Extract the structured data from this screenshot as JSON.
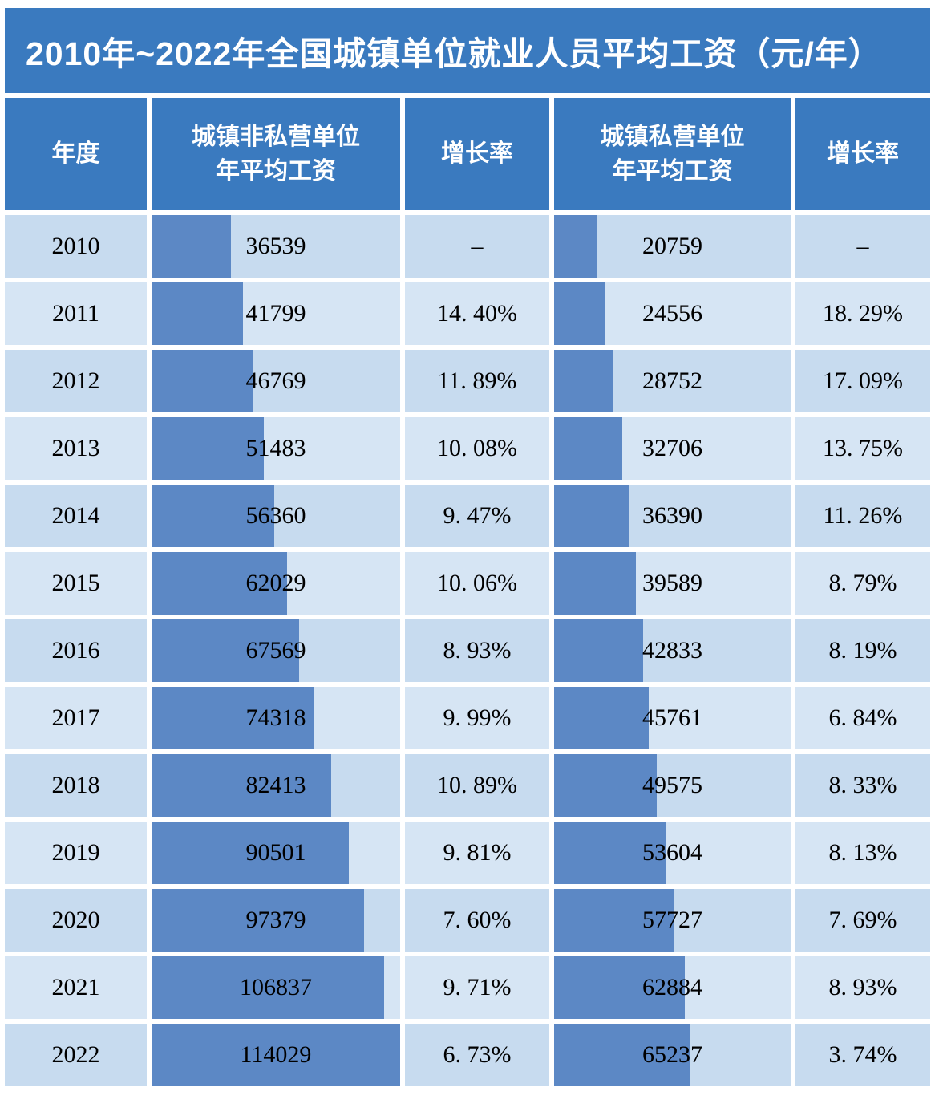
{
  "title": "2010年~2022年全国城镇单位就业人员平均工资（元/年）",
  "colors": {
    "header_bg": "#3a7abf",
    "row_odd_bg": "#c7dbef",
    "row_even_bg": "#d6e5f4",
    "bar": "#5c88c5",
    "header_text": "#ffffff",
    "cell_text": "#000000",
    "page_bg": "#ffffff"
  },
  "header": {
    "col_year": "年度",
    "col_nonprivate": "城镇非私营单位\n年平均工资",
    "col_growth1": "增长率",
    "col_private": "城镇私营单位\n年平均工资",
    "col_growth2": "增长率"
  },
  "chart_data": {
    "type": "table",
    "title": "2010年~2022年全国城镇单位就业人员平均工资（元/年）",
    "columns": [
      "年度",
      "城镇非私营单位年平均工资",
      "增长率",
      "城镇私营单位年平均工资",
      "增长率"
    ],
    "bar_scale_max": 114029,
    "bar_style": "horizontal bars behind wage values, scaled to shared max",
    "rows": [
      {
        "year": "2010",
        "nonprivate_wage": 36539,
        "nonprivate_growth": "–",
        "private_wage": 20759,
        "private_growth": "–"
      },
      {
        "year": "2011",
        "nonprivate_wage": 41799,
        "nonprivate_growth": "14. 40%",
        "private_wage": 24556,
        "private_growth": "18. 29%"
      },
      {
        "year": "2012",
        "nonprivate_wage": 46769,
        "nonprivate_growth": "11. 89%",
        "private_wage": 28752,
        "private_growth": "17. 09%"
      },
      {
        "year": "2013",
        "nonprivate_wage": 51483,
        "nonprivate_growth": "10. 08%",
        "private_wage": 32706,
        "private_growth": "13. 75%"
      },
      {
        "year": "2014",
        "nonprivate_wage": 56360,
        "nonprivate_growth": "9. 47%",
        "private_wage": 36390,
        "private_growth": "11. 26%"
      },
      {
        "year": "2015",
        "nonprivate_wage": 62029,
        "nonprivate_growth": "10. 06%",
        "private_wage": 39589,
        "private_growth": "8. 79%"
      },
      {
        "year": "2016",
        "nonprivate_wage": 67569,
        "nonprivate_growth": "8. 93%",
        "private_wage": 42833,
        "private_growth": "8. 19%"
      },
      {
        "year": "2017",
        "nonprivate_wage": 74318,
        "nonprivate_growth": "9. 99%",
        "private_wage": 45761,
        "private_growth": "6. 84%"
      },
      {
        "year": "2018",
        "nonprivate_wage": 82413,
        "nonprivate_growth": "10. 89%",
        "private_wage": 49575,
        "private_growth": "8. 33%"
      },
      {
        "year": "2019",
        "nonprivate_wage": 90501,
        "nonprivate_growth": "9. 81%",
        "private_wage": 53604,
        "private_growth": "8. 13%"
      },
      {
        "year": "2020",
        "nonprivate_wage": 97379,
        "nonprivate_growth": "7. 60%",
        "private_wage": 57727,
        "private_growth": "7. 69%"
      },
      {
        "year": "2021",
        "nonprivate_wage": 106837,
        "nonprivate_growth": "9. 71%",
        "private_wage": 62884,
        "private_growth": "8. 93%"
      },
      {
        "year": "2022",
        "nonprivate_wage": 114029,
        "nonprivate_growth": "6. 73%",
        "private_wage": 65237,
        "private_growth": "3. 74%"
      }
    ]
  }
}
